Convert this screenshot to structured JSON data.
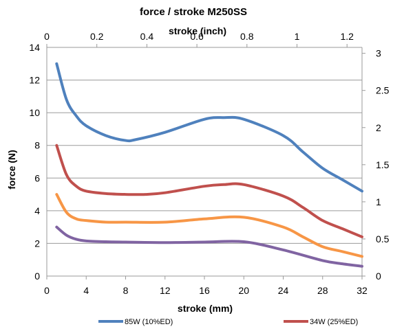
{
  "chart_data": {
    "type": "line",
    "title": "force / stroke M250SS",
    "xlabel": "stroke (mm)",
    "x2label": "stroke (inch)",
    "ylabel": "force (N)",
    "xlim": [
      0,
      32
    ],
    "ylim": [
      0,
      14
    ],
    "x2lim": [
      0,
      1.26
    ],
    "y2lim": [
      0,
      3.08
    ],
    "x_ticks": [
      "0",
      "4",
      "8",
      "12",
      "16",
      "20",
      "24",
      "28",
      "32"
    ],
    "x2_ticks": [
      "0",
      "0.2",
      "0.4",
      "0.6",
      "0.8",
      "1",
      "1.2"
    ],
    "y_ticks": [
      "0",
      "2",
      "4",
      "6",
      "8",
      "10",
      "12",
      "14"
    ],
    "y2_ticks": [
      "0",
      "0.5",
      "1",
      "1.5",
      "2",
      "2.5",
      "3"
    ],
    "grid": "horizontal",
    "legend_position": "bottom",
    "series": [
      {
        "name": "85W (10%ED)",
        "color": "#4F81BD",
        "x": [
          1,
          2,
          3,
          4,
          6,
          8,
          9,
          12,
          16,
          18,
          20,
          24,
          26,
          28,
          30,
          32
        ],
        "y": [
          13,
          10.8,
          9.8,
          9.2,
          8.6,
          8.3,
          8.35,
          8.8,
          9.6,
          9.7,
          9.6,
          8.6,
          7.6,
          6.6,
          5.9,
          5.2
        ]
      },
      {
        "name": "34W (25%ED)",
        "color": "#C0504D",
        "x": [
          1,
          2,
          3,
          4,
          6,
          8,
          10,
          12,
          16,
          18,
          20,
          24,
          26,
          28,
          30,
          32
        ],
        "y": [
          8,
          6.2,
          5.5,
          5.2,
          5.05,
          5.0,
          5.0,
          5.1,
          5.5,
          5.6,
          5.6,
          4.9,
          4.2,
          3.4,
          2.9,
          2.4
        ]
      },
      {
        "name": "",
        "color": "#F79646",
        "x": [
          1,
          2,
          3,
          4,
          6,
          8,
          12,
          16,
          20,
          24,
          26,
          28,
          30,
          32
        ],
        "y": [
          5,
          3.9,
          3.5,
          3.4,
          3.3,
          3.3,
          3.3,
          3.5,
          3.6,
          3.0,
          2.4,
          1.8,
          1.5,
          1.2
        ]
      },
      {
        "name": "",
        "color": "#8064A2",
        "x": [
          1,
          2,
          3,
          4,
          6,
          8,
          12,
          16,
          20,
          24,
          28,
          30,
          32
        ],
        "y": [
          3,
          2.5,
          2.25,
          2.15,
          2.1,
          2.08,
          2.05,
          2.08,
          2.1,
          1.6,
          0.95,
          0.75,
          0.6
        ]
      }
    ]
  }
}
